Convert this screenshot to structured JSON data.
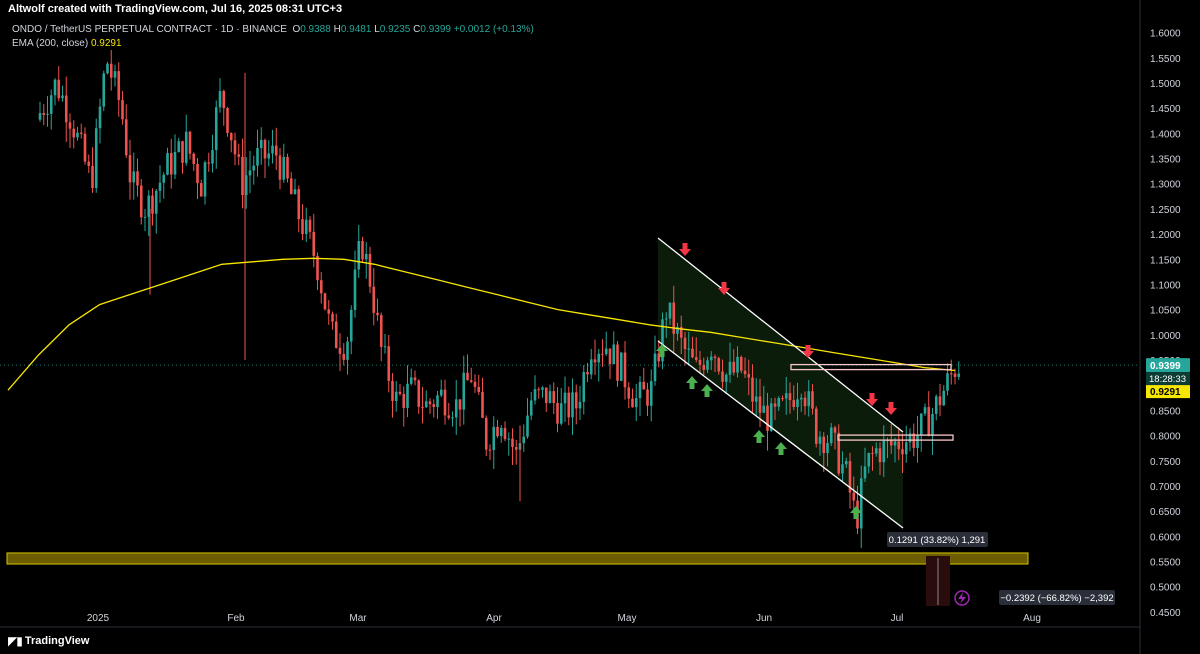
{
  "header": {
    "creator": "Altwolf created with TradingView.com, Jul 16, 2025 08:31 UTC+3",
    "symbol": "ONDO / TetherUS PERPETUAL CONTRACT · 1D · BINANCE",
    "ohlc": {
      "o_label": "O",
      "o": "0.9388",
      "h_label": "H",
      "h": "0.9481",
      "l_label": "L",
      "l": "0.9235",
      "c_label": "C",
      "c": "0.9399",
      "change": "+0.0012 (+0.13%)"
    },
    "ema_label": "EMA (200, close)",
    "ema_value": "0.9291"
  },
  "footer": {
    "brand": "TradingView",
    "logo_icon": "tradingview-logo-icon"
  },
  "colors": {
    "up": "#26a69a",
    "down": "#ef5350",
    "ema": "#f7e600",
    "support_zone": "#6b5d00",
    "channel": "#ffffff",
    "arrow_up": "#4caf50",
    "arrow_down": "#f23645",
    "background": "#000000"
  },
  "chart_data": {
    "type": "candlestick",
    "x_axis_labels": [
      "2025",
      "Feb",
      "Mar",
      "Apr",
      "May",
      "Jun",
      "Jul",
      "Aug"
    ],
    "ylim": [
      0.42,
      1.625
    ],
    "y_ticks": [
      "1.6000",
      "1.5500",
      "1.5000",
      "1.4500",
      "1.4000",
      "1.3500",
      "1.3000",
      "1.2500",
      "1.2000",
      "1.1500",
      "1.1000",
      "1.0500",
      "1.0000",
      "0.9500",
      "0.9000",
      "0.8500",
      "0.8000",
      "0.7500",
      "0.7000",
      "0.6500",
      "0.6000",
      "0.5500",
      "0.5000",
      "0.4500"
    ],
    "price_label": {
      "value": "0.9399",
      "countdown": "18:28:33"
    },
    "ema_label": "0.9291",
    "measure_up": "0.1291 (33.82%) 1,291",
    "measure_down": "−0.2392 (−66.82%) −2,392",
    "support_zone": [
      0.545,
      0.567
    ],
    "resistance_lines": [
      0.935,
      0.795
    ],
    "series": [
      {
        "name": "EMA (200, close)",
        "values": [
          0.89,
          0.96,
          1.02,
          1.06,
          1.08,
          1.1,
          1.12,
          1.14,
          1.145,
          1.15,
          1.152,
          1.15,
          1.14,
          1.125,
          1.11,
          1.095,
          1.08,
          1.065,
          1.05,
          1.04,
          1.03,
          1.02,
          1.012,
          1.005,
          0.995,
          0.985,
          0.975,
          0.965,
          0.955,
          0.945,
          0.935,
          0.9291
        ]
      }
    ]
  }
}
